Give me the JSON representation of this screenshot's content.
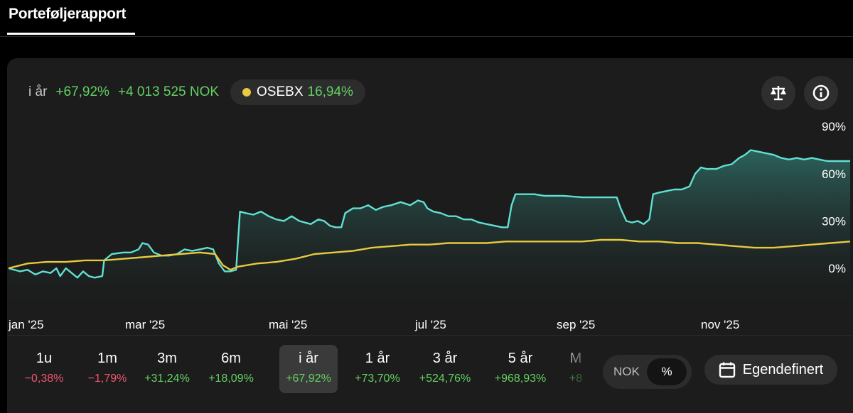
{
  "header": {
    "title": "Porteføljerapport"
  },
  "summary": {
    "period_label": "i år",
    "return_pct": "+67,92%",
    "return_abs": "+4 013 525 NOK",
    "benchmark": {
      "name": "OSEBX",
      "return_pct": "16,94%",
      "color": "#e8c93f"
    }
  },
  "icons": {
    "compare": "scale-icon",
    "info": "info-icon"
  },
  "chart_data": {
    "type": "line",
    "x_ticks": [
      "jan '25",
      "mar '25",
      "mai '25",
      "jul '25",
      "sep '25",
      "nov '25"
    ],
    "y_ticks": [
      "90%",
      "60%",
      "30%",
      "0%"
    ],
    "ylim": [
      -10,
      90
    ],
    "series": [
      {
        "color": "#5fe0d2",
        "points": [
          [
            0,
            0
          ],
          [
            0.6,
            -2
          ],
          [
            1,
            -1
          ],
          [
            1.4,
            -4
          ],
          [
            1.8,
            -2
          ],
          [
            2.2,
            -3
          ],
          [
            2.5,
            0
          ],
          [
            2.7,
            -5
          ],
          [
            3,
            0
          ],
          [
            3.3,
            -3
          ],
          [
            3.6,
            -6
          ],
          [
            3.9,
            -2
          ],
          [
            4.2,
            -5
          ],
          [
            4.5,
            -6
          ],
          [
            4.9,
            -5
          ],
          [
            5,
            5
          ],
          [
            5.4,
            9
          ],
          [
            6,
            10
          ],
          [
            6.4,
            10
          ],
          [
            6.8,
            12
          ],
          [
            7,
            16
          ],
          [
            7.3,
            15
          ],
          [
            7.6,
            10
          ],
          [
            8,
            8
          ],
          [
            8.4,
            8
          ],
          [
            8.8,
            9
          ],
          [
            9.2,
            12
          ],
          [
            9.6,
            11
          ],
          [
            10,
            12
          ],
          [
            10.4,
            13
          ],
          [
            10.7,
            12
          ],
          [
            11,
            3
          ],
          [
            11.3,
            -2
          ],
          [
            11.6,
            -2
          ],
          [
            11.9,
            -1
          ],
          [
            12.1,
            36
          ],
          [
            12.4,
            35
          ],
          [
            12.8,
            34
          ],
          [
            13.2,
            36
          ],
          [
            13.6,
            33
          ],
          [
            14,
            31
          ],
          [
            14.4,
            30
          ],
          [
            14.8,
            33
          ],
          [
            15.2,
            30
          ],
          [
            15.8,
            28
          ],
          [
            16.2,
            31
          ],
          [
            16.5,
            30
          ],
          [
            16.8,
            27
          ],
          [
            17.1,
            26
          ],
          [
            17.4,
            26
          ],
          [
            17.6,
            35
          ],
          [
            18,
            38
          ],
          [
            18.4,
            38
          ],
          [
            18.8,
            40
          ],
          [
            19.2,
            37
          ],
          [
            19.6,
            39
          ],
          [
            20,
            40
          ],
          [
            20.5,
            42
          ],
          [
            21,
            40
          ],
          [
            21.4,
            43
          ],
          [
            21.7,
            42
          ],
          [
            21.9,
            38
          ],
          [
            22.2,
            36
          ],
          [
            22.6,
            35
          ],
          [
            23,
            33
          ],
          [
            23.4,
            33
          ],
          [
            23.8,
            31
          ],
          [
            24.2,
            31
          ],
          [
            24.6,
            29
          ],
          [
            25,
            28
          ],
          [
            25.4,
            27
          ],
          [
            25.8,
            26
          ],
          [
            26.1,
            26
          ],
          [
            26.3,
            40
          ],
          [
            26.5,
            47
          ],
          [
            27,
            47
          ],
          [
            27.5,
            47
          ],
          [
            28,
            46
          ],
          [
            29,
            46
          ],
          [
            30,
            45
          ],
          [
            31,
            45
          ],
          [
            31.8,
            45
          ],
          [
            32,
            38
          ],
          [
            32.3,
            30
          ],
          [
            32.6,
            29
          ],
          [
            32.9,
            30
          ],
          [
            33.2,
            28
          ],
          [
            33.5,
            31
          ],
          [
            33.7,
            47
          ],
          [
            34,
            48
          ],
          [
            34.4,
            49
          ],
          [
            34.8,
            50
          ],
          [
            35.2,
            50
          ],
          [
            35.6,
            52
          ],
          [
            35.9,
            60
          ],
          [
            36.2,
            64
          ],
          [
            36.5,
            63
          ],
          [
            37,
            63
          ],
          [
            37.4,
            65
          ],
          [
            37.8,
            66
          ],
          [
            38.2,
            70
          ],
          [
            38.5,
            72
          ],
          [
            38.8,
            75
          ],
          [
            39.2,
            74
          ],
          [
            39.6,
            73
          ],
          [
            40,
            72
          ],
          [
            40.4,
            70
          ],
          [
            40.8,
            69
          ],
          [
            41.2,
            70
          ],
          [
            41.6,
            69
          ],
          [
            42,
            70
          ],
          [
            42.4,
            69
          ],
          [
            42.8,
            68
          ],
          [
            43.2,
            68
          ],
          [
            43.6,
            68
          ],
          [
            44,
            68
          ]
        ]
      },
      {
        "color": "#e8c93f",
        "points": [
          [
            0,
            0
          ],
          [
            1,
            3
          ],
          [
            2,
            4
          ],
          [
            3,
            4
          ],
          [
            4,
            5
          ],
          [
            5,
            5
          ],
          [
            6,
            6
          ],
          [
            7,
            7
          ],
          [
            8,
            8
          ],
          [
            9,
            9
          ],
          [
            10,
            10
          ],
          [
            10.8,
            9
          ],
          [
            11.2,
            2
          ],
          [
            11.6,
            -1
          ],
          [
            12,
            1
          ],
          [
            13,
            3
          ],
          [
            14,
            4
          ],
          [
            15,
            6
          ],
          [
            16,
            9
          ],
          [
            17,
            10
          ],
          [
            18,
            11
          ],
          [
            19,
            13
          ],
          [
            20,
            14
          ],
          [
            21,
            15
          ],
          [
            22,
            15
          ],
          [
            23,
            16
          ],
          [
            24,
            16
          ],
          [
            25,
            16
          ],
          [
            26,
            17
          ],
          [
            27,
            17
          ],
          [
            28,
            17
          ],
          [
            29,
            17
          ],
          [
            30,
            17
          ],
          [
            31,
            18
          ],
          [
            32,
            18
          ],
          [
            33,
            17
          ],
          [
            34,
            17
          ],
          [
            35,
            16
          ],
          [
            36,
            16
          ],
          [
            37,
            15
          ],
          [
            38,
            14
          ],
          [
            39,
            13
          ],
          [
            40,
            13
          ],
          [
            41,
            14
          ],
          [
            42,
            15
          ],
          [
            43,
            16
          ],
          [
            44,
            17
          ]
        ]
      }
    ]
  },
  "periods": [
    {
      "label": "1u",
      "value": "−0,38%",
      "sign": "neg"
    },
    {
      "label": "1m",
      "value": "−1,79%",
      "sign": "neg"
    },
    {
      "label": "3m",
      "value": "+31,24%",
      "sign": "pos"
    },
    {
      "label": "6m",
      "value": "+18,09%",
      "sign": "pos"
    },
    {
      "label": "i år",
      "value": "+67,92%",
      "sign": "pos",
      "active": true
    },
    {
      "label": "1 år",
      "value": "+73,70%",
      "sign": "pos"
    },
    {
      "label": "3 år",
      "value": "+524,76%",
      "sign": "pos"
    },
    {
      "label": "5 år",
      "value": "+968,93%",
      "sign": "pos"
    },
    {
      "label": "M",
      "value": "+8",
      "sign": "pos"
    }
  ],
  "unit_toggle": {
    "nok": "NOK",
    "pct": "%"
  },
  "custom_range": {
    "label": "Egendefinert"
  }
}
